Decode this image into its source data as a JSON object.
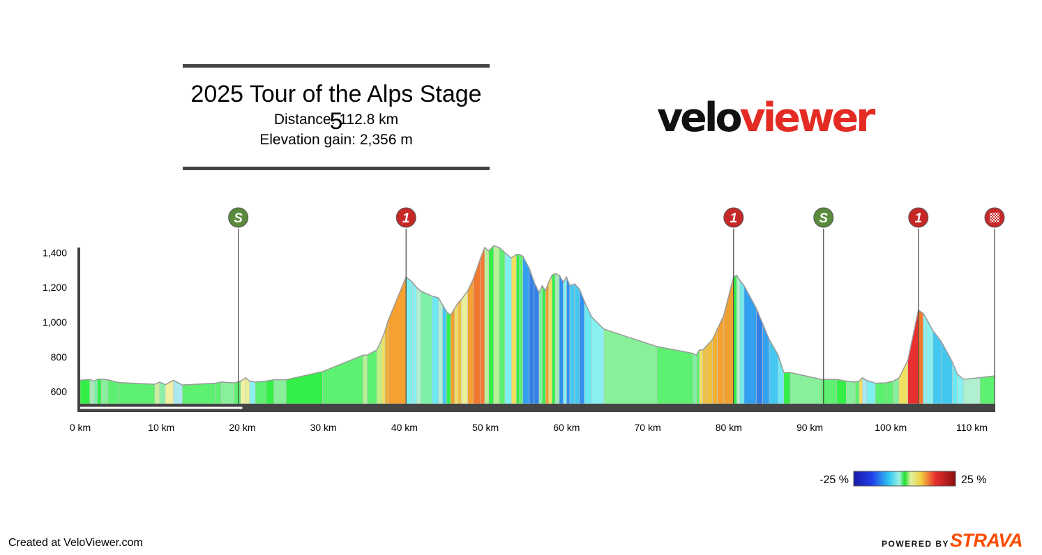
{
  "header": {
    "title": "2025 Tour of the Alps Stage 5",
    "distance_label": "Distance: 112.8 km",
    "elevation_label": "Elevation gain: 2,356 m"
  },
  "logo": {
    "part1": "velo",
    "part2": "viewer"
  },
  "footer": {
    "created": "Created at VeloViewer.com",
    "powered_by": "POWERED BY",
    "strava": "STRAVA"
  },
  "colors": {
    "logo_dark": "#111111",
    "logo_red": "#e32b24",
    "strava_orange": "#fc4c02",
    "sprint_marker": "#5a8a3c",
    "kom_marker": "#c62828",
    "axis": "#444444"
  },
  "chart_data": {
    "type": "area",
    "title": "2025 Tour of the Alps Stage 5",
    "xlabel": "",
    "ylabel": "",
    "x_unit": "km",
    "y_unit": "m",
    "xlim": [
      0,
      112.8
    ],
    "ylim": [
      530,
      1430
    ],
    "x_ticks": [
      0,
      10,
      20,
      30,
      40,
      50,
      60,
      70,
      80,
      90,
      100,
      110
    ],
    "x_tick_labels": [
      "0 km",
      "10 km",
      "20 km",
      "30 km",
      "40 km",
      "50 km",
      "60 km",
      "70 km",
      "80 km",
      "90 km",
      "100 km",
      "110 km"
    ],
    "y_ticks": [
      600,
      800,
      1000,
      1200,
      1400
    ],
    "y_tick_labels": [
      "600",
      "800",
      "1,000",
      "1,200",
      "1,400"
    ],
    "gradient_legend": {
      "min_label": "-25 %",
      "max_label": "25 %",
      "min": -25,
      "max": 25
    },
    "markers": [
      {
        "km": 19.5,
        "label": "S",
        "type": "sprint"
      },
      {
        "km": 40.2,
        "label": "1",
        "type": "kom"
      },
      {
        "km": 80.6,
        "label": "1",
        "type": "kom"
      },
      {
        "km": 91.7,
        "label": "S",
        "type": "sprint"
      },
      {
        "km": 103.4,
        "label": "1",
        "type": "kom"
      },
      {
        "km": 112.8,
        "label": "",
        "type": "finish"
      }
    ],
    "profile": {
      "x": [
        0,
        1.2,
        1.7,
        2.1,
        2.6,
        3.4,
        4.7,
        9.2,
        9.8,
        10.5,
        11.5,
        12.6,
        16.7,
        17.4,
        19.0,
        19.8,
        20.4,
        20.9,
        21.6,
        22.9,
        23.9,
        25.4,
        29.9,
        34.9,
        35.4,
        36.6,
        37.2,
        37.6,
        38.0,
        40.2,
        41.0,
        41.5,
        42.0,
        43.4,
        44.2,
        44.7,
        45.2,
        45.7,
        46.2,
        46.6,
        47.0,
        47.8,
        48.5,
        49.4,
        49.9,
        50.4,
        51.0,
        51.7,
        52.4,
        53.2,
        53.8,
        54.2,
        54.6,
        55.4,
        56.0,
        56.6,
        57.0,
        57.4,
        57.8,
        58.2,
        58.6,
        59.1,
        59.6,
        60.0,
        60.4,
        61.0,
        61.6,
        62.2,
        63.1,
        64.6,
        71.1,
        75.6,
        76.0,
        76.4,
        76.8,
        77.2,
        78.0,
        78.6,
        79.4,
        80.6,
        81.0,
        81.4,
        81.9,
        83.4,
        84.2,
        85.0,
        86.1,
        86.8,
        87.6,
        91.4,
        93.3,
        94.5,
        95.6,
        96.1,
        96.5,
        97.0,
        98.1,
        99.4,
        100.3,
        101.0,
        102.1,
        103.4,
        104.0,
        104.4,
        105.2,
        106.2,
        107.6,
        108.2,
        109.0,
        111.0,
        112.8
      ],
      "y": [
        665,
        670,
        660,
        670,
        672,
        668,
        652,
        642,
        655,
        640,
        665,
        638,
        648,
        655,
        650,
        660,
        680,
        660,
        655,
        660,
        668,
        668,
        715,
        810,
        810,
        840,
        900,
        950,
        1010,
        1260,
        1230,
        1200,
        1180,
        1150,
        1140,
        1100,
        1060,
        1040,
        1080,
        1110,
        1130,
        1180,
        1250,
        1370,
        1430,
        1410,
        1440,
        1430,
        1400,
        1370,
        1390,
        1390,
        1380,
        1310,
        1230,
        1170,
        1210,
        1180,
        1230,
        1270,
        1280,
        1270,
        1230,
        1260,
        1210,
        1220,
        1190,
        1120,
        1030,
        960,
        860,
        820,
        810,
        840,
        840,
        860,
        900,
        960,
        1040,
        1260,
        1270,
        1240,
        1210,
        1080,
        990,
        900,
        810,
        710,
        710,
        670,
        670,
        660,
        655,
        660,
        680,
        665,
        648,
        650,
        660,
        678,
        780,
        1070,
        1050,
        1020,
        950,
        890,
        770,
        700,
        670,
        680,
        690
      ],
      "segment_colors": [
        "#33ef47",
        "#a8e8b8",
        "#7ff0a8",
        "#33ef47",
        "#88ef9a",
        "#5ef070",
        "#5ef070",
        "#c8f0a0",
        "#8af0a8",
        "#f0f0a0",
        "#aae8f0",
        "#5ef070",
        "#5ef070",
        "#88ef9a",
        "#5ef070",
        "#f0f0a0",
        "#e8f098",
        "#88f0f0",
        "#5ef070",
        "#33ef47",
        "#88ef9a",
        "#33ef47",
        "#5ef070",
        "#b8f098",
        "#5ef070",
        "#c0f080",
        "#f0e060",
        "#f0b030",
        "#f5a030",
        "#7ff0f0",
        "#88f0f0",
        "#b0f0d0",
        "#7ff0a8",
        "#6ce8f0",
        "#b0f0d0",
        "#44c8f0",
        "#33ef47",
        "#f0a030",
        "#f0e060",
        "#f0c040",
        "#e8f098",
        "#f5a030",
        "#f07830",
        "#f07830",
        "#b8f098",
        "#33ef47",
        "#b8f098",
        "#5ef070",
        "#7ff0f0",
        "#f0e060",
        "#33ef47",
        "#5ef070",
        "#33a0f0",
        "#3080e8",
        "#3080e8",
        "#7ff0a8",
        "#33ef47",
        "#f0a030",
        "#f0e060",
        "#33ef47",
        "#a8e8b8",
        "#3090f0",
        "#88f0f0",
        "#3090f0",
        "#44c8f0",
        "#44c8f0",
        "#3090f0",
        "#6ce8f0",
        "#88f0f0",
        "#88f098",
        "#5ef070",
        "#7ff0a8",
        "#5ef070",
        "#f0e060",
        "#f0c040",
        "#f0c040",
        "#f0b030",
        "#f5a030",
        "#f0a030",
        "#33ef47",
        "#b0f0d0",
        "#6ce8f0",
        "#33a0f0",
        "#3080e8",
        "#33a0f0",
        "#44c8f0",
        "#6ce8f0",
        "#33ef47",
        "#88ef9a",
        "#5ef070",
        "#33ef47",
        "#88ef9a",
        "#5ef070",
        "#f0e060",
        "#aae8f0",
        "#7ff0f0",
        "#5ef070",
        "#5ef070",
        "#88ef9a",
        "#f0e060",
        "#e83030",
        "#f07830",
        "#88f0f0",
        "#88f0f0",
        "#44c8f0",
        "#44c8f0",
        "#6ce8f0",
        "#88f0f0",
        "#b0f0d0",
        "#5ef070",
        "#33ef47"
      ]
    }
  }
}
